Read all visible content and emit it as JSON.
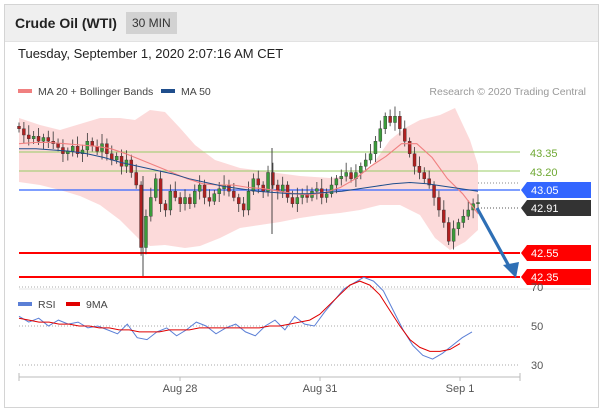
{
  "header": {
    "title": "Crude Oil (WTI)",
    "timeframe": "30 MIN"
  },
  "datetime": "Tuesday, September 1, 2020 2:07:16 AM CET",
  "legend_top": [
    {
      "label": "MA 20 + Bollinger Bands",
      "color": "#f08080"
    },
    {
      "label": "MA 50",
      "color": "#1f4e8c"
    }
  ],
  "credit": "Research © 2020 Trading Central",
  "legend_bottom": [
    {
      "label": "RSI",
      "color": "#5b7fd6"
    },
    {
      "label": "9MA",
      "color": "#e00000"
    }
  ],
  "colors": {
    "candle_up": "#3a9b3a",
    "candle_down": "#b02020",
    "bollinger_fill": "#fbd3d3",
    "level_red": "#ff0000",
    "level_blue": "#3366ff",
    "level_green": "#99cc66",
    "arrow": "#2e6fb5"
  },
  "chart_data": [
    {
      "type": "candlestick",
      "price_levels": [
        {
          "value": "43.35",
          "kind": "resistance",
          "color": "#8db84a"
        },
        {
          "value": "43.20",
          "kind": "resistance",
          "color": "#8db84a"
        },
        {
          "value": "43.05",
          "kind": "pivot",
          "color": "#3366ff"
        },
        {
          "value": "42.91",
          "kind": "last",
          "color": "#333333"
        },
        {
          "value": "42.55",
          "kind": "support",
          "color": "#ff0000"
        },
        {
          "value": "42.35",
          "kind": "support",
          "color": "#ff0000"
        }
      ],
      "x_ticks": [
        "Aug 28",
        "Aug 31",
        "Sep 1"
      ],
      "close_series": [
        43.5,
        43.45,
        43.42,
        43.44,
        43.4,
        43.43,
        43.4,
        43.38,
        43.35,
        43.3,
        43.32,
        43.36,
        43.3,
        43.33,
        43.4,
        43.36,
        43.32,
        43.38,
        43.3,
        43.25,
        43.28,
        43.2,
        43.25,
        43.15,
        43.05,
        42.55,
        42.8,
        42.95,
        43.1,
        42.9,
        42.85,
        43.0,
        42.95,
        42.9,
        42.95,
        42.9,
        43.0,
        43.05,
        42.95,
        42.92,
        42.98,
        43.02,
        43.05,
        43.0,
        42.95,
        42.9,
        42.85,
        43.0,
        43.1,
        43.05,
        43.0,
        43.15,
        43.05,
        43.0,
        43.05,
        42.95,
        42.9,
        42.95,
        42.98,
        42.95,
        43.0,
        43.02,
        42.95,
        42.98,
        43.05,
        43.1,
        43.12,
        43.15,
        43.1,
        43.15,
        43.2,
        43.25,
        43.3,
        43.4,
        43.5,
        43.6,
        43.55,
        43.6,
        43.5,
        43.4,
        43.3,
        43.2,
        43.15,
        43.1,
        43.05,
        42.95,
        42.85,
        42.75,
        42.6,
        42.7,
        42.75,
        42.8,
        42.85,
        42.9,
        42.91
      ],
      "ma20_series": [
        43.38,
        43.39,
        43.39,
        43.38,
        43.37,
        43.36,
        43.34,
        43.3,
        43.25,
        43.2,
        43.15,
        43.1,
        43.06,
        43.05,
        43.05,
        43.03,
        43.02,
        43.0,
        42.98,
        42.97,
        42.99,
        43.03,
        43.1,
        43.2,
        43.28,
        43.38,
        43.38,
        43.27,
        43.1,
        42.98,
        42.82
      ],
      "ma50_series": [
        43.34,
        43.34,
        43.33,
        43.32,
        43.3,
        43.27,
        43.23,
        43.2,
        43.17,
        43.14,
        43.1,
        43.07,
        43.04,
        43.02,
        43.0,
        42.99,
        42.98,
        42.98,
        42.99,
        43.0,
        43.02,
        43.04,
        43.06,
        43.07,
        43.06,
        43.04,
        43.02,
        43.0
      ]
    },
    {
      "type": "line",
      "title": "RSI",
      "y_ticks": [
        "70",
        "50",
        "30"
      ],
      "series": [
        {
          "name": "RSI",
          "values": [
            55,
            52,
            54,
            50,
            53,
            51,
            52,
            49,
            50,
            48,
            46,
            51,
            44,
            43,
            47,
            49,
            45,
            48,
            52,
            50,
            46,
            49,
            51,
            47,
            45,
            50,
            53,
            48,
            55,
            51,
            50,
            57,
            63,
            69,
            72,
            75,
            73,
            68,
            58,
            48,
            40,
            35,
            33,
            36,
            40,
            44,
            47
          ]
        },
        {
          "name": "9MA",
          "values": [
            54,
            53,
            52,
            52,
            51,
            51,
            50,
            50,
            49,
            49,
            48,
            48,
            47,
            47,
            47,
            48,
            48,
            48,
            49,
            49,
            49,
            49,
            49,
            49,
            49,
            50,
            50,
            51,
            52,
            53,
            56,
            61,
            66,
            71,
            73,
            71,
            66,
            58,
            50,
            43,
            39,
            37,
            37,
            38,
            41
          ]
        }
      ]
    }
  ]
}
